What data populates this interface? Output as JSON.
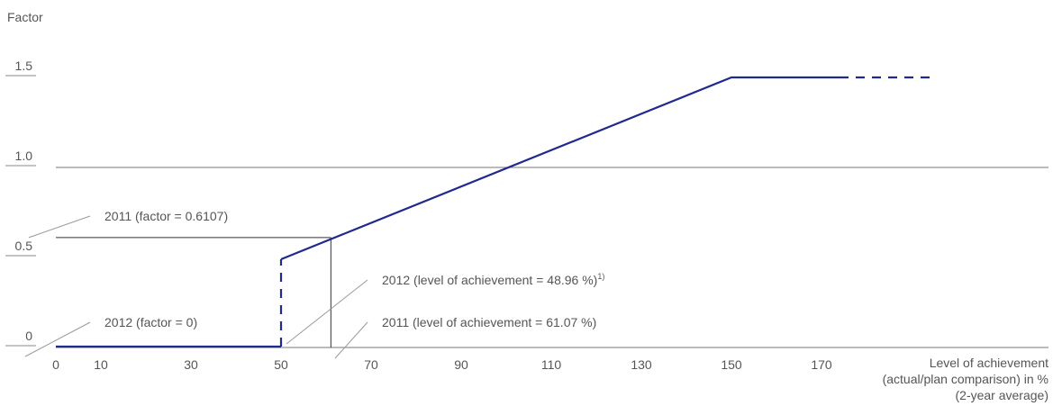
{
  "chart_data": {
    "type": "line",
    "ylabel": "Factor",
    "xlabel_lines": [
      "Level of achievement",
      "(actual/plan comparison) in %",
      "(2-year average)"
    ],
    "x_ticks": [
      0,
      10,
      30,
      50,
      70,
      90,
      110,
      130,
      150,
      170
    ],
    "y_ticks": [
      {
        "value": 0,
        "label": "0"
      },
      {
        "value": 0.5,
        "label": "0.5"
      },
      {
        "value": 1.0,
        "label": "1.0"
      },
      {
        "value": 1.5,
        "label": "1.5"
      }
    ],
    "xlim": [
      0,
      179
    ],
    "ylim": [
      0,
      1.5
    ],
    "grid": "horizontal lines at 0 and 1.0",
    "color": "#1f2a8c",
    "series": [
      {
        "segments": [
          {
            "style": "solid",
            "points": [
              [
                0,
                0.005
              ],
              [
                50,
                0.005
              ]
            ]
          },
          {
            "style": "dashed",
            "points": [
              [
                50,
                0.005
              ],
              [
                50,
                0.49
              ]
            ]
          },
          {
            "style": "solid",
            "points": [
              [
                50,
                0.49
              ],
              [
                150,
                1.5
              ],
              [
                174,
                1.5
              ]
            ]
          },
          {
            "style": "dashed",
            "points": [
              [
                174,
                1.5
              ],
              [
                194,
                1.5
              ]
            ]
          }
        ]
      }
    ],
    "reference_lines": [
      {
        "type": "horizontal",
        "y": 0.6107,
        "x_from": 0,
        "x_to": 61.07
      },
      {
        "type": "vertical",
        "x": 61.07,
        "y_from": 0,
        "y_to": 0.6107
      }
    ],
    "annotations": [
      {
        "text": "2011 (factor = 0.6107)",
        "anchor": [
          0,
          0.6107
        ]
      },
      {
        "text": "2012 (factor = 0)",
        "anchor": [
          0,
          0
        ]
      },
      {
        "text": "2012 (level of achievement = 48.96 %)",
        "sup": "1)",
        "anchor": [
          48.96,
          0
        ]
      },
      {
        "text": "2011 (level of achievement = 61.07 %)",
        "anchor": [
          61.07,
          0
        ]
      }
    ]
  }
}
